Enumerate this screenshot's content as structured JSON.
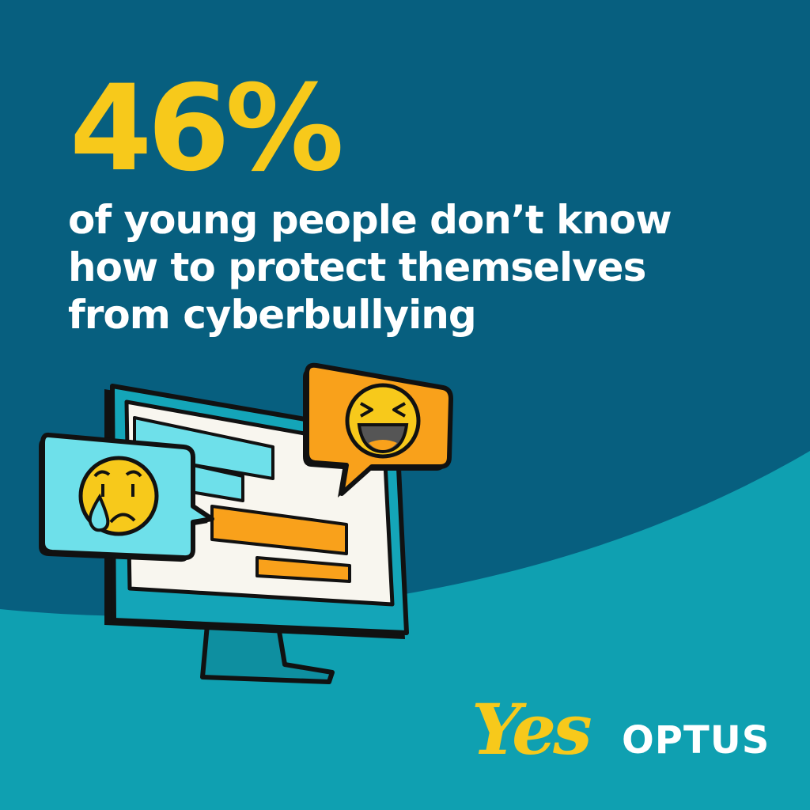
{
  "headline": {
    "statistic": "46%",
    "description": "of young people don’t know how to protect themselves from cyberbullying"
  },
  "illustration": {
    "subject": "computer monitor with chat bubbles",
    "icons": [
      "crying-face-icon",
      "laughing-face-icon"
    ]
  },
  "brand": {
    "tagline_logo": "Yes",
    "name": "OPTUS"
  },
  "colors": {
    "background_dark": "#075f7f",
    "background_wave": "#0fa0b1",
    "accent_yellow": "#f7c91b",
    "orange": "#f9a11b",
    "light_blue": "#6ee0ea"
  }
}
